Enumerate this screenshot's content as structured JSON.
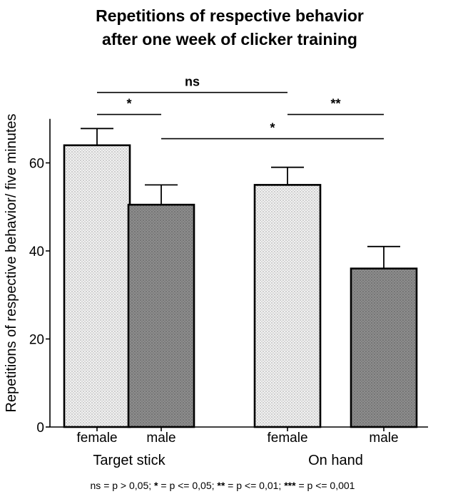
{
  "chart_data": {
    "type": "bar",
    "title": "Repetitions of respective behavior after one week of clicker training",
    "title_lines": [
      "Repetitions of respective behavior",
      "after one week of clicker training"
    ],
    "xlabel": "",
    "ylabel": "Repetitions of respective behavior/ five minutes",
    "ylim": [
      0,
      70
    ],
    "yticks": [
      0,
      20,
      40,
      60
    ],
    "grid": false,
    "groups": [
      "Target stick",
      "On hand"
    ],
    "categories": [
      "female",
      "male",
      "female",
      "male"
    ],
    "values": [
      64,
      50.5,
      55,
      36
    ],
    "errors": [
      3.8,
      4.5,
      4,
      5
    ],
    "bar_fills": [
      "light-stipple",
      "dark-stipple",
      "light-stipple",
      "dark-stipple"
    ],
    "significance": [
      {
        "from": 0,
        "to": 2,
        "label": "ns",
        "y": 76
      },
      {
        "from": 0,
        "to": 1,
        "label": "*",
        "y": 71
      },
      {
        "from": 2,
        "to": 3,
        "label": "**",
        "y": 71
      },
      {
        "from": 1,
        "to": 3,
        "label": "*",
        "y": 65.5
      }
    ],
    "footnote": "ns = p > 0,05; * = p <=  0,05; ** = p <= 0,01; *** = p <= 0,001",
    "footnote_parts": [
      {
        "t": "ns = p > 0,05; ",
        "b": false
      },
      {
        "t": "*",
        "b": true
      },
      {
        "t": " = p <=  0,05; ",
        "b": false
      },
      {
        "t": "**",
        "b": true
      },
      {
        "t": " = p <= 0,01; ",
        "b": false
      },
      {
        "t": "***",
        "b": true
      },
      {
        "t": " = p <= 0,001",
        "b": false
      }
    ]
  }
}
